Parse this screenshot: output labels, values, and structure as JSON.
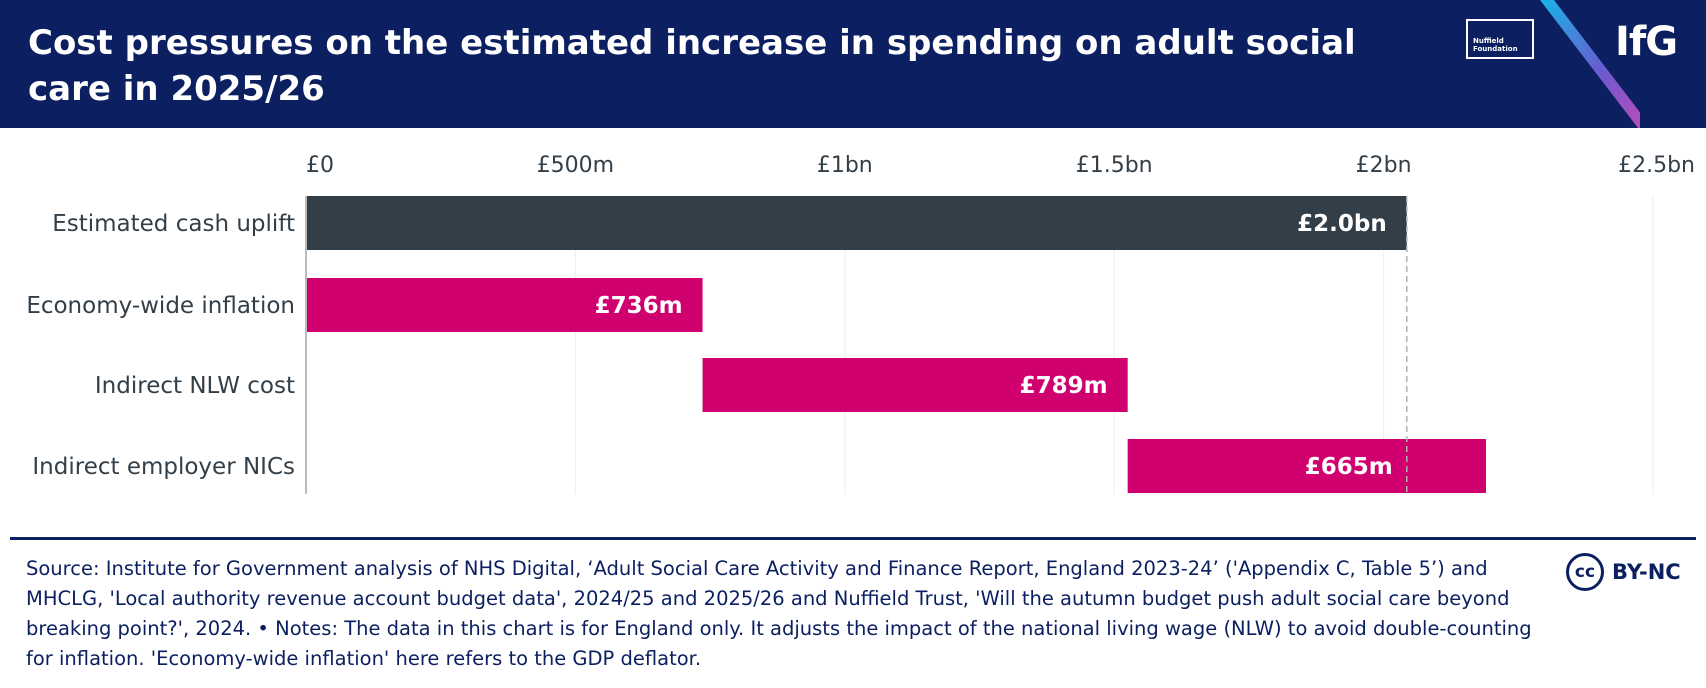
{
  "header": {
    "title": "Cost pressures on the estimated increase in spending on adult social care in 2025/26",
    "nuffield_logo": "Nuffield Foundation",
    "ifg_logo": "IfG"
  },
  "colors": {
    "header_bg": "#0b1f61",
    "total_bar": "#333f48",
    "component_bar": "#d0006f",
    "text": "#333f48",
    "grid": "#eeeeee",
    "axis": "#bbbbbb"
  },
  "chart_data": {
    "type": "waterfall",
    "title": "Cost pressures on the estimated increase in spending on adult social care in 2025/26",
    "xlabel": "",
    "ylabel": "",
    "xlim": [
      0,
      2500
    ],
    "unit": "£m",
    "tick_values": [
      0,
      500,
      1000,
      1500,
      2000,
      2500
    ],
    "tick_labels": [
      "£0",
      "£500m",
      "£1bn",
      "£1.5bn",
      "£2bn",
      "£2.5bn"
    ],
    "reference_line": 2043,
    "legend": "none",
    "bars": [
      {
        "category": "Estimated cash uplift",
        "start": 0,
        "end": 2043,
        "value": 2043,
        "label": "£2.0bn",
        "kind": "total"
      },
      {
        "category": "Economy-wide inflation",
        "start": 0,
        "end": 736,
        "value": 736,
        "label": "£736m",
        "kind": "component"
      },
      {
        "category": "Indirect NLW cost",
        "start": 736,
        "end": 1525,
        "value": 789,
        "label": "£789m",
        "kind": "component"
      },
      {
        "category": "Indirect employer NICs",
        "start": 1525,
        "end": 2190,
        "value": 665,
        "label": "£665m",
        "kind": "component"
      }
    ]
  },
  "footer": {
    "source_text": "Source: Institute for Government analysis of NHS Digital, ‘Adult Social Care Activity and Finance Report, England 2023-24’ ('Appendix C, Table 5’) and MHCLG, 'Local authority revenue account budget data', 2024/25 and 2025/26 and Nuffield Trust, 'Will the autumn budget push adult social care beyond breaking point?', 2024. • Notes: The data in this chart is for England only. It adjusts the impact of the national living wage (NLW) to avoid double-counting for inflation. 'Economy-wide inflation' here refers to the GDP deflator.",
    "license_mark": "cc",
    "license": "BY-NC"
  }
}
